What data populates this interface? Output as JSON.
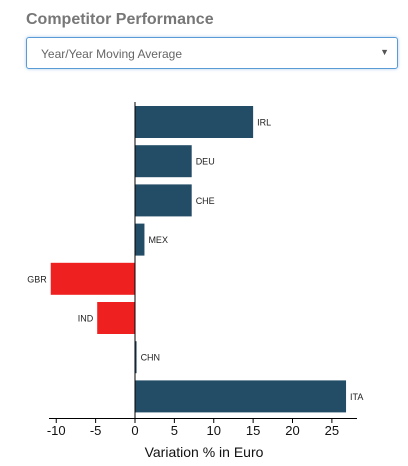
{
  "title": "Competitor Performance",
  "dropdown": {
    "selected": "Year/Year Moving Average",
    "caret_icon": "chevron-down-icon"
  },
  "colors": {
    "positive": "#234c66",
    "negative": "#ee2020",
    "axis": "#000000"
  },
  "chart_data": {
    "type": "bar",
    "orientation": "horizontal",
    "categories": [
      "IRL",
      "DEU",
      "CHE",
      "MEX",
      "GBR",
      "IND",
      "CHN",
      "ITA"
    ],
    "values": [
      15,
      7.2,
      7.2,
      1.2,
      -10.7,
      -4.8,
      0.2,
      26.8
    ],
    "xlabel": "Variation % in Euro",
    "ylabel": "",
    "xlim": [
      -11,
      28
    ],
    "xticks": [
      -10,
      -5,
      0,
      5,
      10,
      15,
      20,
      25
    ],
    "grid": false,
    "legend": "none"
  }
}
